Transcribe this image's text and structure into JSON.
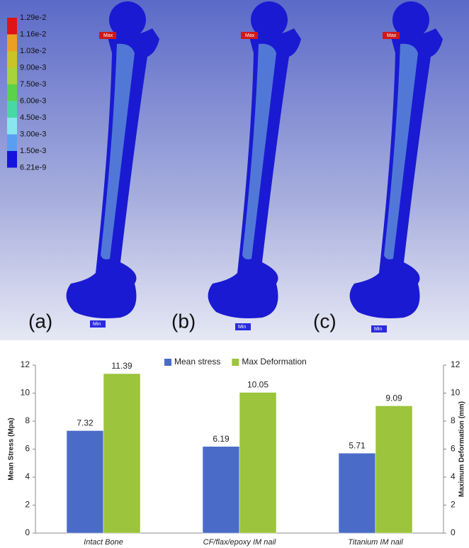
{
  "contour_legend": {
    "labels": [
      "1.29e-2",
      "1.16e-2",
      "1.03e-2",
      "9.00e-3",
      "7.50e-3",
      "6.00e-3",
      "4.50e-3",
      "3.00e-3",
      "1.50e-3",
      "6.21e-9"
    ],
    "colors": [
      "#e01414",
      "#eba024",
      "#c9c428",
      "#a6d43a",
      "#5ad24a",
      "#48d8a4",
      "#8ae6ee",
      "#5a9ef0",
      "#1414dc"
    ]
  },
  "panels": [
    {
      "label": "(a)",
      "max_tag": "Max",
      "min_tag": "Min"
    },
    {
      "label": "(b)",
      "max_tag": "Max",
      "min_tag": "Min"
    },
    {
      "label": "(c)",
      "max_tag": "Max",
      "min_tag": "Min"
    }
  ],
  "chart_data": {
    "type": "bar",
    "categories": [
      "Intact Bone",
      "CF/flax/epoxy IM nail",
      "Titanium IM nail"
    ],
    "series": [
      {
        "name": "Mean stress",
        "color": "#4a6cc8",
        "values": [
          7.32,
          6.19,
          5.71
        ]
      },
      {
        "name": "Max Deformation",
        "color": "#9cc43c",
        "values": [
          11.39,
          10.05,
          9.09
        ],
        "axis": "y2"
      }
    ],
    "ylabel": "Mean Stress (Mpa)",
    "y2label": "Maximum Deformation (mm)",
    "ylim": [
      0,
      12
    ],
    "yticks": [
      0,
      2,
      4,
      6,
      8,
      10,
      12
    ],
    "y2lim": [
      0,
      12
    ],
    "y2ticks": [
      0,
      2,
      4,
      6,
      8,
      10,
      12
    ]
  }
}
